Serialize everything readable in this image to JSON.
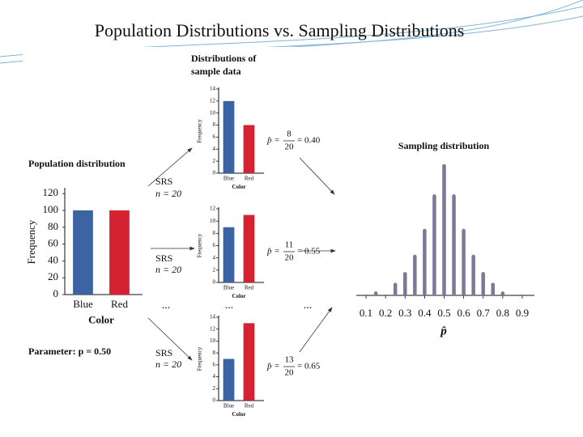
{
  "title": "Population Distributions vs. Sampling Distributions",
  "sample_heading": [
    "Distributions of",
    "sample data"
  ],
  "parameter": "Parameter: p = 0.50",
  "ellipsis": "...",
  "srs_labels": [
    {
      "method": "SRS",
      "size": "n = 20"
    },
    {
      "method": "SRS",
      "size": "n = 20"
    },
    {
      "method": "SRS",
      "size": "n = 20"
    }
  ],
  "estimates": [
    {
      "lhs": "p̂ =",
      "numerator": "8",
      "denominator": "20",
      "rhs": "= 0.40"
    },
    {
      "lhs": "p̂ =",
      "numerator": "11",
      "denominator": "20",
      "rhs": "= 0.55"
    },
    {
      "lhs": "p̂ =",
      "numerator": "13",
      "denominator": "20",
      "rhs": "= 0.65"
    }
  ],
  "chart_data": [
    {
      "type": "bar",
      "title": "Population distribution",
      "categories": [
        "Blue",
        "Red"
      ],
      "values": [
        100,
        100
      ],
      "colors": [
        "#3c64a3",
        "#d42232"
      ],
      "ylim": [
        0,
        125
      ],
      "yticks": [
        0,
        20,
        40,
        60,
        80,
        100,
        120
      ],
      "xlabel": "Color",
      "ylabel": "Frequency"
    },
    {
      "type": "bar",
      "categories": [
        "Blue",
        "Red"
      ],
      "values": [
        12,
        8
      ],
      "colors": [
        "#3c64a3",
        "#d42232"
      ],
      "ylim": [
        0,
        14
      ],
      "yticks": [
        0,
        2,
        4,
        6,
        8,
        10,
        12,
        14
      ],
      "xlabel": "Color",
      "ylabel": "Frequency"
    },
    {
      "type": "bar",
      "categories": [
        "Blue",
        "Red"
      ],
      "values": [
        9,
        11
      ],
      "colors": [
        "#3c64a3",
        "#d42232"
      ],
      "ylim": [
        0,
        12
      ],
      "yticks": [
        0,
        2,
        4,
        6,
        8,
        10,
        12
      ],
      "xlabel": "Color",
      "ylabel": "Frequency"
    },
    {
      "type": "bar",
      "categories": [
        "Blue",
        "Red"
      ],
      "values": [
        7,
        13
      ],
      "colors": [
        "#3c64a3",
        "#d42232"
      ],
      "ylim": [
        0,
        14
      ],
      "yticks": [
        0,
        2,
        4,
        6,
        8,
        10,
        12,
        14
      ],
      "xlabel": "Color",
      "ylabel": "Frequency"
    },
    {
      "type": "stem",
      "title": "Sampling distribution",
      "x": [
        0.15,
        0.25,
        0.3,
        0.35,
        0.4,
        0.45,
        0.5,
        0.55,
        0.6,
        0.65,
        0.7,
        0.75,
        0.8
      ],
      "values": [
        1,
        5,
        10,
        18,
        30,
        46,
        60,
        46,
        30,
        18,
        10,
        5,
        1
      ],
      "color": "#7b7898",
      "xlim": [
        0.05,
        0.95
      ],
      "ylim": [
        0,
        60
      ],
      "xticks": [
        0.1,
        0.2,
        0.3,
        0.4,
        0.5,
        0.6,
        0.7,
        0.8,
        0.9
      ],
      "xlabel": "p̂"
    }
  ]
}
